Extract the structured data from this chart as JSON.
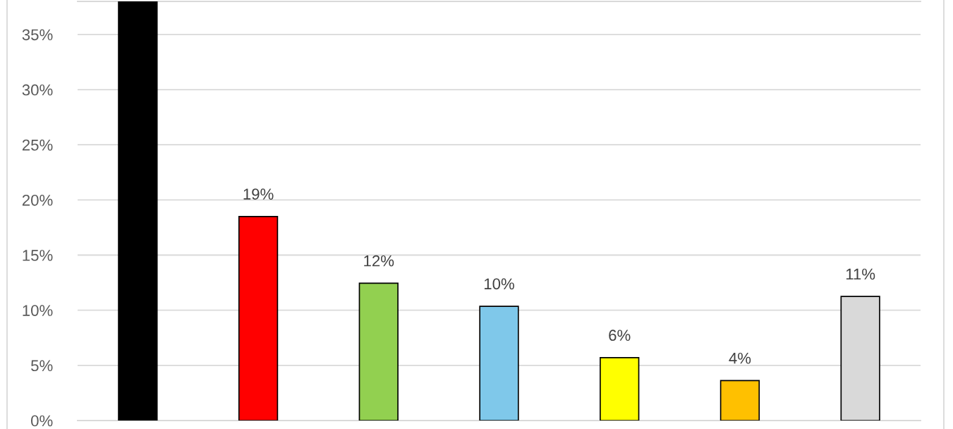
{
  "chart_data": {
    "type": "bar",
    "categories": [
      null,
      null,
      null,
      null,
      null,
      null,
      null
    ],
    "values": [
      38,
      18.5,
      12.45,
      10.36,
      5.7,
      3.62,
      11.25
    ],
    "colors": [
      "#000000",
      "#ff0000",
      "#92d050",
      "#7fc8ea",
      "#ffff00",
      "#ffc000",
      "#d9d9d9"
    ],
    "value_labels": [
      null,
      "19%",
      "12%",
      "10%",
      "6%",
      "4%",
      "11%"
    ],
    "ylim": [
      0,
      38
    ],
    "yticks": [
      {
        "value": 0,
        "label": "0%"
      },
      {
        "value": 5,
        "label": "5%"
      },
      {
        "value": 10,
        "label": "10%"
      },
      {
        "value": 15,
        "label": "15%"
      },
      {
        "value": 20,
        "label": "20%"
      },
      {
        "value": 25,
        "label": "25%"
      },
      {
        "value": 30,
        "label": "30%"
      },
      {
        "value": 35,
        "label": "35%"
      }
    ],
    "grid": "y",
    "legend": false
  }
}
